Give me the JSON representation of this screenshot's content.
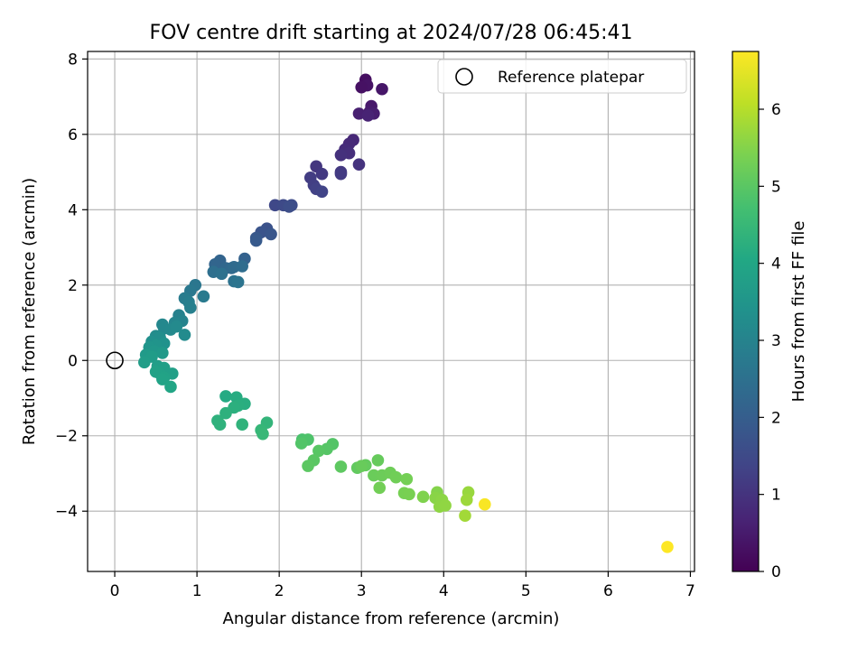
{
  "chart_data": {
    "type": "scatter",
    "title": "FOV centre drift starting at 2024/07/28 06:45:41",
    "xlabel": "Angular distance from reference (arcmin)",
    "ylabel": "Rotation from reference (arcmin)",
    "xlim": [
      -0.33,
      7.05
    ],
    "ylim": [
      -5.6,
      8.2
    ],
    "xticks": [
      0,
      1,
      2,
      3,
      4,
      5,
      6,
      7
    ],
    "yticks": [
      -4,
      -2,
      0,
      2,
      4,
      6,
      8
    ],
    "xtick_labels": [
      "0",
      "1",
      "2",
      "3",
      "4",
      "5",
      "6",
      "7"
    ],
    "ytick_labels": [
      "−4",
      "−2",
      "0",
      "2",
      "4",
      "6",
      "8"
    ],
    "grid": true,
    "legend": {
      "position": "top-right",
      "label": "Reference platepar"
    },
    "reference_point": {
      "x": 0,
      "y": 0
    },
    "colorbar": {
      "label": "Hours from first FF file",
      "colormap": "viridis",
      "range": [
        0,
        6.75
      ],
      "ticks": [
        0,
        1,
        2,
        3,
        4,
        5,
        6
      ],
      "tick_labels": [
        "0",
        "1",
        "2",
        "3",
        "4",
        "5",
        "6"
      ]
    },
    "series": [
      {
        "points": [
          [
            3.05,
            7.45
          ],
          [
            3.07,
            7.3
          ],
          [
            3.0,
            7.25
          ],
          [
            3.25,
            7.2
          ],
          [
            3.12,
            6.75
          ],
          [
            3.1,
            6.6
          ],
          [
            3.15,
            6.55
          ],
          [
            2.97,
            6.55
          ],
          [
            3.08,
            6.5
          ],
          [
            2.9,
            5.85
          ],
          [
            2.85,
            5.75
          ],
          [
            2.8,
            5.6
          ],
          [
            2.85,
            5.5
          ],
          [
            2.75,
            5.45
          ],
          [
            2.97,
            5.2
          ],
          [
            2.45,
            5.15
          ],
          [
            2.75,
            5.0
          ],
          [
            2.52,
            4.95
          ],
          [
            2.75,
            4.95
          ],
          [
            2.38,
            4.85
          ],
          [
            2.42,
            4.65
          ],
          [
            2.45,
            4.55
          ],
          [
            2.52,
            4.48
          ],
          [
            1.95,
            4.12
          ],
          [
            2.05,
            4.12
          ],
          [
            2.15,
            4.12
          ],
          [
            2.12,
            4.08
          ],
          [
            1.85,
            3.5
          ],
          [
            1.78,
            3.4
          ],
          [
            1.9,
            3.35
          ],
          [
            1.72,
            3.25
          ],
          [
            1.72,
            3.18
          ],
          [
            1.58,
            2.7
          ],
          [
            1.28,
            2.65
          ],
          [
            1.22,
            2.55
          ],
          [
            1.35,
            2.45
          ],
          [
            1.42,
            2.45
          ],
          [
            1.45,
            2.48
          ],
          [
            1.55,
            2.5
          ],
          [
            1.2,
            2.35
          ],
          [
            1.3,
            2.3
          ],
          [
            1.45,
            2.1
          ],
          [
            1.5,
            2.08
          ],
          [
            0.98,
            2.0
          ],
          [
            0.92,
            1.85
          ],
          [
            1.08,
            1.7
          ],
          [
            0.85,
            1.65
          ],
          [
            0.9,
            1.55
          ],
          [
            0.92,
            1.4
          ],
          [
            0.78,
            1.2
          ],
          [
            0.82,
            1.05
          ],
          [
            0.73,
            1.0
          ],
          [
            0.58,
            0.95
          ],
          [
            0.6,
            0.85
          ],
          [
            0.68,
            0.82
          ],
          [
            0.75,
            0.9
          ],
          [
            0.85,
            0.68
          ],
          [
            0.5,
            0.65
          ],
          [
            0.55,
            0.6
          ],
          [
            0.45,
            0.5
          ],
          [
            0.6,
            0.45
          ],
          [
            0.5,
            0.4
          ],
          [
            0.42,
            0.35
          ],
          [
            0.48,
            0.25
          ],
          [
            0.58,
            0.2
          ],
          [
            0.38,
            0.15
          ],
          [
            0.45,
            0.1
          ],
          [
            0.36,
            -0.05
          ],
          [
            0.52,
            -0.15
          ],
          [
            0.6,
            -0.2
          ],
          [
            0.7,
            -0.35
          ],
          [
            0.55,
            -0.35
          ],
          [
            0.5,
            -0.3
          ],
          [
            0.6,
            -0.45
          ],
          [
            0.58,
            -0.5
          ],
          [
            0.68,
            -0.7
          ],
          [
            1.35,
            -0.95
          ],
          [
            1.48,
            -0.98
          ],
          [
            1.58,
            -1.15
          ],
          [
            1.5,
            -1.2
          ],
          [
            1.45,
            -1.25
          ],
          [
            1.35,
            -1.4
          ],
          [
            1.25,
            -1.6
          ],
          [
            1.28,
            -1.7
          ],
          [
            1.55,
            -1.7
          ],
          [
            1.85,
            -1.65
          ],
          [
            1.78,
            -1.85
          ],
          [
            1.8,
            -1.95
          ],
          [
            2.28,
            -2.1
          ],
          [
            2.35,
            -2.1
          ],
          [
            2.27,
            -2.2
          ],
          [
            2.65,
            -2.22
          ],
          [
            2.58,
            -2.35
          ],
          [
            2.48,
            -2.4
          ],
          [
            2.42,
            -2.65
          ],
          [
            2.35,
            -2.8
          ],
          [
            2.75,
            -2.82
          ],
          [
            2.95,
            -2.85
          ],
          [
            3.05,
            -2.78
          ],
          [
            3.2,
            -2.65
          ],
          [
            3.0,
            -2.8
          ],
          [
            3.15,
            -3.05
          ],
          [
            3.25,
            -3.05
          ],
          [
            3.35,
            -2.98
          ],
          [
            3.42,
            -3.1
          ],
          [
            3.22,
            -3.38
          ],
          [
            3.55,
            -3.15
          ],
          [
            3.52,
            -3.52
          ],
          [
            3.58,
            -3.55
          ],
          [
            3.75,
            -3.62
          ],
          [
            3.92,
            -3.5
          ],
          [
            3.9,
            -3.65
          ],
          [
            3.98,
            -3.7
          ],
          [
            3.95,
            -3.88
          ],
          [
            4.02,
            -3.85
          ],
          [
            4.3,
            -3.5
          ],
          [
            4.28,
            -3.7
          ],
          [
            4.26,
            -4.12
          ],
          [
            4.5,
            -3.82
          ],
          [
            6.72,
            -4.95
          ]
        ],
        "times": [
          0.25,
          0.35,
          0.3,
          0.4,
          0.45,
          0.5,
          0.55,
          0.6,
          0.65,
          0.75,
          0.8,
          0.85,
          0.9,
          0.95,
          1.0,
          1.05,
          1.1,
          1.12,
          1.15,
          1.2,
          1.25,
          1.3,
          1.35,
          1.45,
          1.5,
          1.55,
          1.6,
          1.7,
          1.75,
          1.8,
          1.85,
          1.9,
          2.1,
          2.15,
          2.2,
          2.25,
          2.3,
          2.35,
          2.4,
          2.45,
          2.5,
          2.55,
          2.6,
          2.65,
          2.7,
          2.75,
          2.8,
          2.85,
          2.9,
          2.95,
          3.0,
          3.05,
          3.1,
          3.12,
          3.15,
          3.18,
          3.2,
          3.25,
          3.3,
          3.35,
          3.4,
          3.45,
          3.5,
          3.55,
          3.6,
          3.65,
          3.7,
          3.72,
          3.75,
          3.78,
          3.8,
          3.82,
          3.85,
          3.87,
          3.9,
          3.95,
          4.1,
          4.15,
          4.2,
          4.22,
          4.25,
          4.28,
          4.3,
          4.32,
          4.35,
          4.4,
          4.45,
          4.5,
          4.8,
          4.85,
          4.9,
          4.92,
          4.95,
          4.98,
          5.0,
          5.02,
          5.05,
          5.1,
          5.12,
          5.15,
          5.18,
          5.2,
          5.22,
          5.25,
          5.28,
          5.3,
          5.32,
          5.35,
          5.38,
          5.45,
          5.5,
          5.55,
          5.58,
          5.6,
          5.62,
          5.7,
          5.75,
          5.8,
          6.7,
          6.75
        ]
      }
    ]
  }
}
